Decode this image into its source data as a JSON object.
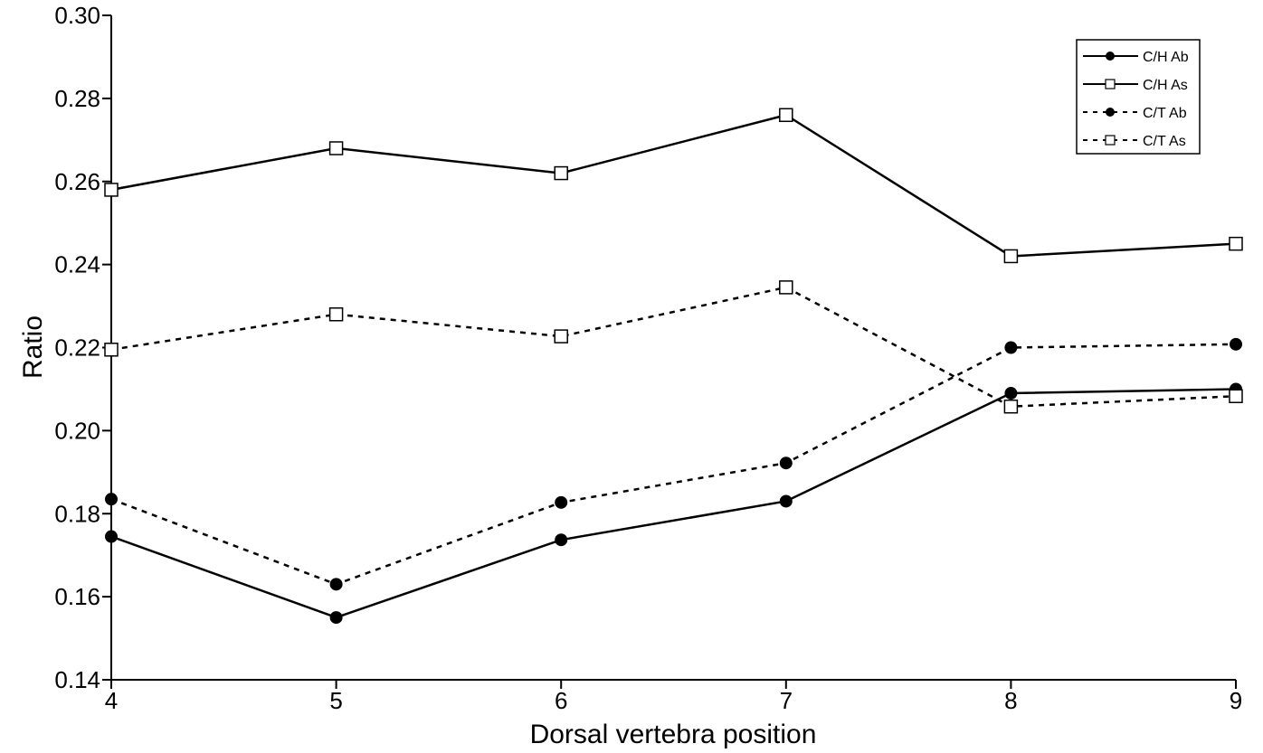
{
  "chart_data": {
    "type": "line",
    "title": "",
    "xlabel": "Dorsal vertebra position",
    "ylabel": "Ratio",
    "x": [
      4,
      5,
      6,
      7,
      8,
      9
    ],
    "xlim": [
      4,
      9
    ],
    "ylim": [
      0.14,
      0.3
    ],
    "x_ticks": [
      "4",
      "5",
      "6",
      "7",
      "8",
      "9"
    ],
    "y_ticks": [
      "0.14",
      "0.16",
      "0.18",
      "0.20",
      "0.22",
      "0.24",
      "0.26",
      "0.28",
      "0.30"
    ],
    "grid": false,
    "legend_position": "top-right",
    "series": [
      {
        "name": "C/H Ab",
        "values": [
          0.1745,
          0.155,
          0.1737,
          0.183,
          0.209,
          0.21
        ],
        "line": "solid",
        "marker": "filled-circle"
      },
      {
        "name": "C/H As",
        "values": [
          0.258,
          0.268,
          0.262,
          0.276,
          0.242,
          0.245
        ],
        "line": "solid",
        "marker": "open-square"
      },
      {
        "name": "C/T Ab",
        "values": [
          0.1835,
          0.163,
          0.1827,
          0.1922,
          0.22,
          0.2208
        ],
        "line": "dashed",
        "marker": "filled-circle"
      },
      {
        "name": "C/T As",
        "values": [
          0.2195,
          0.228,
          0.2227,
          0.2345,
          0.2058,
          0.2083
        ],
        "line": "dashed",
        "marker": "open-square"
      }
    ]
  }
}
